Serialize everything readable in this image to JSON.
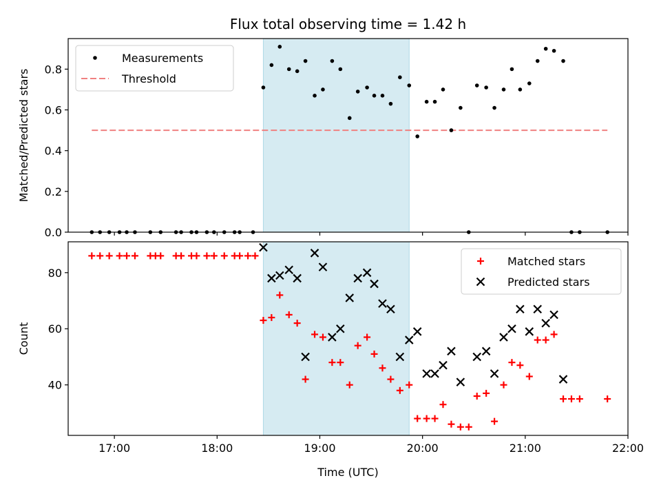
{
  "chart_data": {
    "title": "Flux total observing time = 1.42 h",
    "xlabel": "Time (UTC)",
    "xlim": [
      16.55,
      22.0
    ],
    "x_tick_values": [
      17,
      18,
      19,
      20,
      21,
      22
    ],
    "x_tick_labels": [
      "17:00",
      "18:00",
      "19:00",
      "20:00",
      "21:00",
      "22:00"
    ],
    "shaded_span": {
      "start": 18.45,
      "end": 19.87,
      "color": "#add8e6"
    },
    "panels": [
      {
        "type": "scatter",
        "ylabel": "Matched/Predicted stars",
        "ylim": [
          0.0,
          0.95
        ],
        "y_tick_values": [
          0.0,
          0.2,
          0.4,
          0.6,
          0.8
        ],
        "y_tick_labels": [
          "0.0",
          "0.2",
          "0.4",
          "0.6",
          "0.8"
        ],
        "legend": {
          "position": "upper-left",
          "entries": [
            {
              "label": "Measurements",
              "marker": "dot"
            },
            {
              "label": "Threshold",
              "marker": "dashed-line"
            }
          ]
        },
        "threshold": {
          "y": 0.5,
          "x_start": 16.78,
          "x_end": 21.8,
          "color": "#f08080"
        },
        "series": [
          {
            "name": "Measurements",
            "color": "#000000",
            "points": [
              [
                16.78,
                0.0
              ],
              [
                16.86,
                0.0
              ],
              [
                16.95,
                0.0
              ],
              [
                17.05,
                0.0
              ],
              [
                17.12,
                0.0
              ],
              [
                17.2,
                0.0
              ],
              [
                17.35,
                0.0
              ],
              [
                17.45,
                0.0
              ],
              [
                17.6,
                0.0
              ],
              [
                17.65,
                0.0
              ],
              [
                17.75,
                0.0
              ],
              [
                17.8,
                0.0
              ],
              [
                17.9,
                0.0
              ],
              [
                17.97,
                0.0
              ],
              [
                18.07,
                0.0
              ],
              [
                18.17,
                0.0
              ],
              [
                18.22,
                0.0
              ],
              [
                18.35,
                0.0
              ],
              [
                18.45,
                0.71
              ],
              [
                18.53,
                0.82
              ],
              [
                18.61,
                0.91
              ],
              [
                18.7,
                0.8
              ],
              [
                18.78,
                0.79
              ],
              [
                18.86,
                0.84
              ],
              [
                18.95,
                0.67
              ],
              [
                19.03,
                0.7
              ],
              [
                19.12,
                0.84
              ],
              [
                19.2,
                0.8
              ],
              [
                19.29,
                0.56
              ],
              [
                19.37,
                0.69
              ],
              [
                19.46,
                0.71
              ],
              [
                19.53,
                0.67
              ],
              [
                19.61,
                0.67
              ],
              [
                19.69,
                0.63
              ],
              [
                19.78,
                0.76
              ],
              [
                19.87,
                0.72
              ],
              [
                19.95,
                0.47
              ],
              [
                20.04,
                0.64
              ],
              [
                20.12,
                0.64
              ],
              [
                20.2,
                0.7
              ],
              [
                20.28,
                0.5
              ],
              [
                20.37,
                0.61
              ],
              [
                20.45,
                0.0
              ],
              [
                20.53,
                0.72
              ],
              [
                20.62,
                0.71
              ],
              [
                20.7,
                0.61
              ],
              [
                20.79,
                0.7
              ],
              [
                20.87,
                0.8
              ],
              [
                20.95,
                0.7
              ],
              [
                21.04,
                0.73
              ],
              [
                21.12,
                0.84
              ],
              [
                21.2,
                0.9
              ],
              [
                21.28,
                0.89
              ],
              [
                21.37,
                0.84
              ],
              [
                21.45,
                0.0
              ],
              [
                21.53,
                0.0
              ],
              [
                21.8,
                0.0
              ]
            ]
          }
        ]
      },
      {
        "type": "scatter",
        "ylabel": "Count",
        "ylim": [
          22.0,
          91.0
        ],
        "y_tick_values": [
          40,
          60,
          80
        ],
        "y_tick_labels": [
          "40",
          "60",
          "80"
        ],
        "legend": {
          "position": "upper-right",
          "entries": [
            {
              "label": "Matched stars",
              "marker": "plus"
            },
            {
              "label": "Predicted stars",
              "marker": "x"
            }
          ]
        },
        "series": [
          {
            "name": "Matched stars",
            "marker": "plus",
            "color": "#ff0000",
            "points": [
              [
                16.78,
                86
              ],
              [
                16.86,
                86
              ],
              [
                16.95,
                86
              ],
              [
                17.05,
                86
              ],
              [
                17.12,
                86
              ],
              [
                17.2,
                86
              ],
              [
                17.35,
                86
              ],
              [
                17.4,
                86
              ],
              [
                17.45,
                86
              ],
              [
                17.6,
                86
              ],
              [
                17.65,
                86
              ],
              [
                17.75,
                86
              ],
              [
                17.8,
                86
              ],
              [
                17.9,
                86
              ],
              [
                17.97,
                86
              ],
              [
                18.07,
                86
              ],
              [
                18.17,
                86
              ],
              [
                18.22,
                86
              ],
              [
                18.3,
                86
              ],
              [
                18.37,
                86
              ],
              [
                18.45,
                63
              ],
              [
                18.53,
                64
              ],
              [
                18.61,
                72
              ],
              [
                18.7,
                65
              ],
              [
                18.78,
                62
              ],
              [
                18.86,
                42
              ],
              [
                18.95,
                58
              ],
              [
                19.03,
                57
              ],
              [
                19.12,
                48
              ],
              [
                19.2,
                48
              ],
              [
                19.29,
                40
              ],
              [
                19.37,
                54
              ],
              [
                19.46,
                57
              ],
              [
                19.53,
                51
              ],
              [
                19.61,
                46
              ],
              [
                19.69,
                42
              ],
              [
                19.78,
                38
              ],
              [
                19.87,
                40
              ],
              [
                19.95,
                28
              ],
              [
                20.04,
                28
              ],
              [
                20.12,
                28
              ],
              [
                20.2,
                33
              ],
              [
                20.28,
                26
              ],
              [
                20.37,
                25
              ],
              [
                20.45,
                25
              ],
              [
                20.53,
                36
              ],
              [
                20.62,
                37
              ],
              [
                20.7,
                27
              ],
              [
                20.79,
                40
              ],
              [
                20.87,
                48
              ],
              [
                20.95,
                47
              ],
              [
                21.04,
                43
              ],
              [
                21.12,
                56
              ],
              [
                21.2,
                56
              ],
              [
                21.28,
                58
              ],
              [
                21.37,
                35
              ],
              [
                21.45,
                35
              ],
              [
                21.53,
                35
              ],
              [
                21.8,
                35
              ]
            ]
          },
          {
            "name": "Predicted stars",
            "marker": "x",
            "color": "#000000",
            "points": [
              [
                18.45,
                89
              ],
              [
                18.53,
                78
              ],
              [
                18.61,
                79
              ],
              [
                18.7,
                81
              ],
              [
                18.78,
                78
              ],
              [
                18.86,
                50
              ],
              [
                18.95,
                87
              ],
              [
                19.03,
                82
              ],
              [
                19.12,
                57
              ],
              [
                19.2,
                60
              ],
              [
                19.29,
                71
              ],
              [
                19.37,
                78
              ],
              [
                19.46,
                80
              ],
              [
                19.53,
                76
              ],
              [
                19.61,
                69
              ],
              [
                19.69,
                67
              ],
              [
                19.78,
                50
              ],
              [
                19.87,
                56
              ],
              [
                19.95,
                59
              ],
              [
                20.04,
                44
              ],
              [
                20.12,
                44
              ],
              [
                20.2,
                47
              ],
              [
                20.28,
                52
              ],
              [
                20.37,
                41
              ],
              [
                20.53,
                50
              ],
              [
                20.62,
                52
              ],
              [
                20.7,
                44
              ],
              [
                20.79,
                57
              ],
              [
                20.87,
                60
              ],
              [
                20.95,
                67
              ],
              [
                21.04,
                59
              ],
              [
                21.12,
                67
              ],
              [
                21.2,
                62
              ],
              [
                21.28,
                65
              ],
              [
                21.37,
                42
              ]
            ]
          }
        ]
      }
    ]
  }
}
